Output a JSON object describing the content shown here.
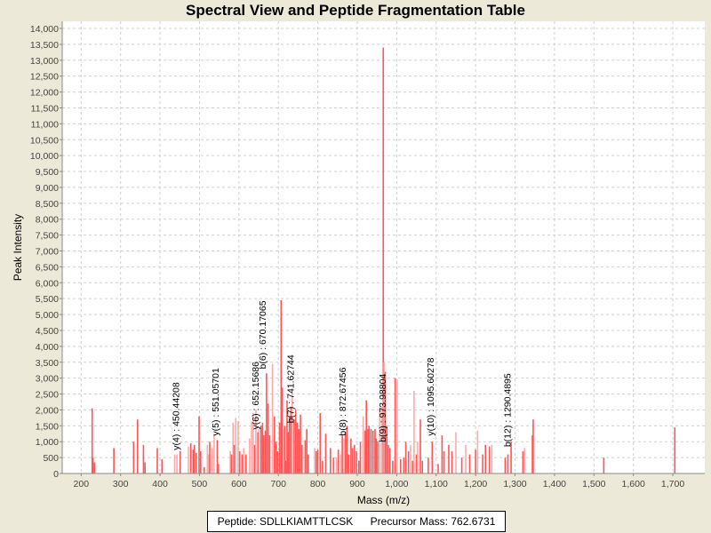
{
  "chart_data": {
    "type": "bar",
    "title": "Spectral View and Peptide Fragmentation Table",
    "xlabel": "Mass (m/z)",
    "ylabel": "Peak Intensity",
    "xlim": [
      152,
      1781
    ],
    "ylim": [
      0,
      14000
    ],
    "xticks": [
      200,
      300,
      400,
      500,
      600,
      700,
      800,
      900,
      1000,
      1100,
      1200,
      1300,
      1400,
      1500,
      1600,
      1700
    ],
    "yticks": [
      0,
      500,
      1000,
      1500,
      2000,
      2500,
      3000,
      3500,
      4000,
      4500,
      5000,
      5500,
      6000,
      6500,
      7000,
      7500,
      8000,
      8500,
      9000,
      9500,
      10000,
      10500,
      11000,
      11500,
      12000,
      12500,
      13000,
      13500,
      14000
    ],
    "grid": true,
    "colors": {
      "peak": "#ff5555",
      "peak_light": "#ffaaaa",
      "grid": "#d0d0d0"
    },
    "peaks": [
      [
        228,
        2050,
        0
      ],
      [
        230,
        500,
        0
      ],
      [
        234,
        350,
        0
      ],
      [
        283,
        800,
        0
      ],
      [
        333,
        1000,
        0
      ],
      [
        343,
        1700,
        0
      ],
      [
        358,
        900,
        0
      ],
      [
        362,
        350,
        0
      ],
      [
        393,
        800,
        0
      ],
      [
        405,
        450,
        0
      ],
      [
        437,
        600,
        1
      ],
      [
        443,
        600,
        1
      ],
      [
        451,
        700,
        0
      ],
      [
        472,
        850,
        1
      ],
      [
        478,
        950,
        0
      ],
      [
        484,
        750,
        0
      ],
      [
        487,
        900,
        0
      ],
      [
        492,
        650,
        0
      ],
      [
        499,
        1800,
        0
      ],
      [
        503,
        700,
        0
      ],
      [
        512,
        200,
        0
      ],
      [
        520,
        900,
        1
      ],
      [
        523,
        600,
        1
      ],
      [
        526,
        1000,
        0
      ],
      [
        532,
        800,
        1
      ],
      [
        537,
        1250,
        1
      ],
      [
        545,
        1050,
        0
      ],
      [
        548,
        300,
        0
      ],
      [
        578,
        700,
        1
      ],
      [
        581,
        600,
        0
      ],
      [
        585,
        1600,
        1
      ],
      [
        588,
        900,
        0
      ],
      [
        592,
        1750,
        1
      ],
      [
        598,
        1650,
        1
      ],
      [
        602,
        700,
        0
      ],
      [
        608,
        600,
        0
      ],
      [
        612,
        800,
        1
      ],
      [
        618,
        600,
        0
      ],
      [
        627,
        1100,
        1
      ],
      [
        632,
        1600,
        1
      ],
      [
        636,
        1900,
        1
      ],
      [
        640,
        900,
        0
      ],
      [
        643,
        2000,
        1
      ],
      [
        648,
        1300,
        0
      ],
      [
        651,
        1400,
        1
      ],
      [
        656,
        1500,
        0
      ],
      [
        660,
        1600,
        0
      ],
      [
        663,
        1200,
        0
      ],
      [
        667,
        1350,
        0
      ],
      [
        670,
        3150,
        0
      ],
      [
        674,
        2200,
        0
      ],
      [
        678,
        1200,
        0
      ],
      [
        685,
        3450,
        1
      ],
      [
        690,
        1800,
        0
      ],
      [
        694,
        1000,
        0
      ],
      [
        698,
        700,
        0
      ],
      [
        703,
        1600,
        0
      ],
      [
        707,
        5450,
        0
      ],
      [
        710,
        2700,
        0
      ],
      [
        713,
        1400,
        1
      ],
      [
        716,
        1500,
        0
      ],
      [
        719,
        400,
        0
      ],
      [
        722,
        2300,
        0
      ],
      [
        725,
        1300,
        0
      ],
      [
        728,
        1800,
        0
      ],
      [
        732,
        2100,
        0
      ],
      [
        735,
        2500,
        1
      ],
      [
        740,
        1700,
        0
      ],
      [
        744,
        2000,
        0
      ],
      [
        748,
        1600,
        0
      ],
      [
        752,
        1400,
        0
      ],
      [
        756,
        1850,
        0
      ],
      [
        760,
        900,
        0
      ],
      [
        768,
        1050,
        0
      ],
      [
        772,
        1400,
        0
      ],
      [
        776,
        600,
        0
      ],
      [
        792,
        800,
        1
      ],
      [
        796,
        700,
        0
      ],
      [
        800,
        750,
        0
      ],
      [
        806,
        1900,
        0
      ],
      [
        812,
        400,
        0
      ],
      [
        820,
        1250,
        0
      ],
      [
        832,
        800,
        0
      ],
      [
        840,
        500,
        0
      ],
      [
        847,
        500,
        1
      ],
      [
        852,
        750,
        0
      ],
      [
        858,
        600,
        1
      ],
      [
        862,
        1200,
        0
      ],
      [
        866,
        1100,
        1
      ],
      [
        870,
        1300,
        0
      ],
      [
        874,
        1500,
        0
      ],
      [
        878,
        600,
        0
      ],
      [
        884,
        1100,
        0
      ],
      [
        888,
        800,
        0
      ],
      [
        893,
        900,
        0
      ],
      [
        898,
        700,
        0
      ],
      [
        904,
        400,
        0
      ],
      [
        908,
        1000,
        0
      ],
      [
        915,
        1800,
        1
      ],
      [
        920,
        1350,
        0
      ],
      [
        923,
        2300,
        0
      ],
      [
        927,
        1400,
        0
      ],
      [
        930,
        1500,
        0
      ],
      [
        935,
        1400,
        0
      ],
      [
        940,
        1350,
        0
      ],
      [
        945,
        1400,
        0
      ],
      [
        948,
        1100,
        0
      ],
      [
        952,
        1000,
        0
      ],
      [
        957,
        2050,
        1
      ],
      [
        962,
        2100,
        1
      ],
      [
        966,
        13400,
        0
      ],
      [
        968,
        3500,
        1
      ],
      [
        971,
        3200,
        0
      ],
      [
        975,
        1500,
        0
      ],
      [
        979,
        900,
        0
      ],
      [
        983,
        800,
        0
      ],
      [
        990,
        400,
        0
      ],
      [
        996,
        3000,
        0
      ],
      [
        1001,
        2950,
        1
      ],
      [
        1010,
        450,
        0
      ],
      [
        1018,
        500,
        0
      ],
      [
        1023,
        1000,
        0
      ],
      [
        1030,
        700,
        0
      ],
      [
        1035,
        900,
        1
      ],
      [
        1040,
        400,
        0
      ],
      [
        1044,
        2600,
        1
      ],
      [
        1050,
        600,
        0
      ],
      [
        1053,
        1000,
        1
      ],
      [
        1060,
        1700,
        0
      ],
      [
        1065,
        400,
        0
      ],
      [
        1080,
        500,
        0
      ],
      [
        1090,
        1000,
        0
      ],
      [
        1105,
        300,
        0
      ],
      [
        1115,
        1200,
        0
      ],
      [
        1120,
        700,
        0
      ],
      [
        1132,
        900,
        0
      ],
      [
        1140,
        700,
        0
      ],
      [
        1150,
        1300,
        1
      ],
      [
        1165,
        500,
        0
      ],
      [
        1175,
        900,
        1
      ],
      [
        1185,
        600,
        0
      ],
      [
        1200,
        750,
        0
      ],
      [
        1205,
        1350,
        1
      ],
      [
        1218,
        600,
        0
      ],
      [
        1225,
        900,
        0
      ],
      [
        1235,
        850,
        0
      ],
      [
        1241,
        900,
        1
      ],
      [
        1275,
        500,
        0
      ],
      [
        1282,
        600,
        0
      ],
      [
        1290,
        1000,
        0
      ],
      [
        1320,
        700,
        0
      ],
      [
        1324,
        800,
        1
      ],
      [
        1344,
        1200,
        0
      ],
      [
        1346,
        1700,
        0
      ],
      [
        1525,
        500,
        0
      ],
      [
        1705,
        1450,
        0
      ]
    ],
    "annotations": [
      {
        "label": "y(4) : 450.44208",
        "mz": 450.44208,
        "intensity": 650
      },
      {
        "label": "y(5) : 551.05701",
        "mz": 551.05701,
        "intensity": 1100
      },
      {
        "label": "y(6) : 652.15686",
        "mz": 652.15686,
        "intensity": 1300
      },
      {
        "label": "b(6) : 670.17065",
        "mz": 670.17065,
        "intensity": 3200
      },
      {
        "label": "b(7) : 741.62744",
        "mz": 741.62744,
        "intensity": 1500
      },
      {
        "label": "b(8) : 872.67456",
        "mz": 872.67456,
        "intensity": 1100
      },
      {
        "label": "b(9) : 973.98804",
        "mz": 973.98804,
        "intensity": 900
      },
      {
        "label": "y(10) : 1095.60278",
        "mz": 1095.60278,
        "intensity": 1100
      },
      {
        "label": "b(12) : 1290.4895",
        "mz": 1290.4895,
        "intensity": 750
      }
    ]
  },
  "legend": {
    "peptide": "Peptide: SDLLKIAMTTLCSK",
    "precursor": "Precursor Mass: 762.6731"
  }
}
